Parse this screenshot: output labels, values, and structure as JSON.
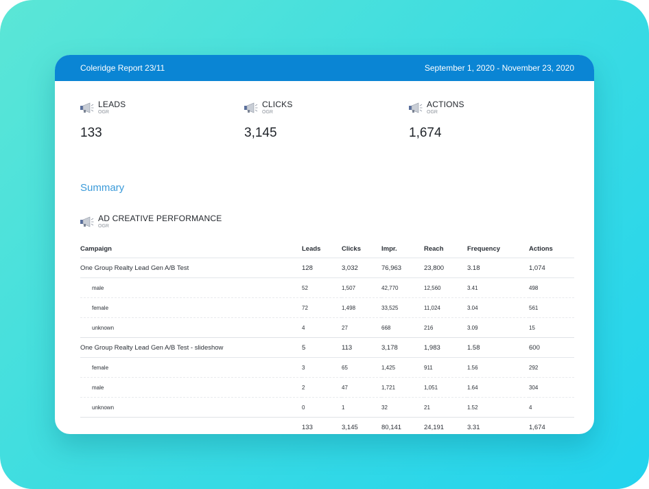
{
  "header": {
    "title": "Coleridge Report 23/11",
    "date_range": "September 1, 2020 - November 23, 2020"
  },
  "kpis": [
    {
      "label": "LEADS",
      "sublabel": "OGR",
      "value": "133",
      "icon": "megaphone-icon"
    },
    {
      "label": "CLICKS",
      "sublabel": "OGR",
      "value": "3,145",
      "icon": "megaphone-icon"
    },
    {
      "label": "ACTIONS",
      "sublabel": "OGR",
      "value": "1,674",
      "icon": "megaphone-icon"
    }
  ],
  "summary": {
    "title": "Summary",
    "widget_title": "AD CREATIVE PERFORMANCE",
    "widget_sub": "OGR",
    "columns": [
      "Campaign",
      "Leads",
      "Clicks",
      "Impr.",
      "Reach",
      "Frequency",
      "Actions"
    ],
    "rows": [
      {
        "type": "group",
        "cells": [
          "One Group Realty Lead Gen A/B Test",
          "128",
          "3,032",
          "76,963",
          "23,800",
          "3.18",
          "1,074"
        ]
      },
      {
        "type": "sub",
        "cells": [
          "male",
          "52",
          "1,507",
          "42,770",
          "12,560",
          "3.41",
          "498"
        ]
      },
      {
        "type": "sub",
        "cells": [
          "female",
          "72",
          "1,498",
          "33,525",
          "11,024",
          "3.04",
          "561"
        ]
      },
      {
        "type": "lastsub",
        "cells": [
          "unknown",
          "4",
          "27",
          "668",
          "216",
          "3.09",
          "15"
        ]
      },
      {
        "type": "group",
        "cells": [
          "One Group Realty Lead Gen A/B Test - slideshow",
          "5",
          "113",
          "3,178",
          "1,983",
          "1.58",
          "600"
        ]
      },
      {
        "type": "sub",
        "cells": [
          "female",
          "3",
          "65",
          "1,425",
          "911",
          "1.56",
          "292"
        ]
      },
      {
        "type": "sub",
        "cells": [
          "male",
          "2",
          "47",
          "1,721",
          "1,051",
          "1.64",
          "304"
        ]
      },
      {
        "type": "lastsub",
        "cells": [
          "unknown",
          "0",
          "1",
          "32",
          "21",
          "1.52",
          "4"
        ]
      },
      {
        "type": "total",
        "cells": [
          "",
          "133",
          "3,145",
          "80,141",
          "24,191",
          "3.31",
          "1,674"
        ]
      }
    ]
  },
  "colors": {
    "header_bg": "#0a85d4",
    "accent": "#3a9ad9",
    "background_start": "#5be6d6",
    "background_end": "#22d3ee"
  }
}
